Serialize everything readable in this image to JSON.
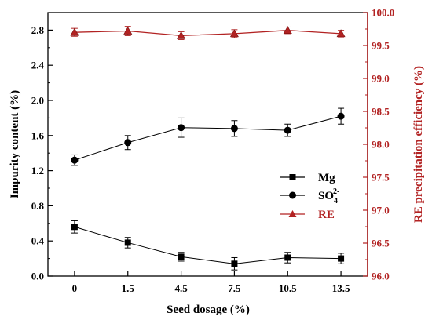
{
  "chart_data": {
    "type": "line",
    "x": [
      "0",
      "1.5",
      "4.5",
      "7.5",
      "10.5",
      "13.5"
    ],
    "xlabel": "Seed dosage (%)",
    "ylabel": "Impurity content (%)",
    "y2label": "RE precipitation efficiency (%)",
    "ylim": [
      0,
      3.0
    ],
    "y2lim": [
      96.0,
      100.0
    ],
    "yticks": [
      "0.0",
      "0.4",
      "0.8",
      "1.2",
      "1.6",
      "2.0",
      "2.4",
      "2.8"
    ],
    "y2ticks": [
      "96.0",
      "96.5",
      "97.0",
      "97.5",
      "98.0",
      "98.5",
      "99.0",
      "99.5",
      "100.0"
    ],
    "grid": false,
    "legend_position": "center-right",
    "series": [
      {
        "name": "Mg",
        "axis": "left",
        "marker": "square",
        "color": "#000000",
        "values": [
          0.56,
          0.38,
          0.22,
          0.14,
          0.21,
          0.2
        ],
        "errors": [
          0.07,
          0.06,
          0.05,
          0.07,
          0.06,
          0.06
        ]
      },
      {
        "name_main": "SO",
        "name_sub": "4",
        "name_sup": "2-",
        "axis": "left",
        "marker": "circle",
        "color": "#000000",
        "values": [
          1.32,
          1.52,
          1.69,
          1.68,
          1.66,
          1.82
        ],
        "errors": [
          0.06,
          0.08,
          0.11,
          0.09,
          0.07,
          0.09
        ]
      },
      {
        "name": "RE",
        "axis": "right",
        "marker": "triangle",
        "color": "#b22222",
        "values": [
          99.7,
          99.72,
          99.65,
          99.68,
          99.73,
          99.68
        ],
        "errors": [
          0.06,
          0.07,
          0.06,
          0.06,
          0.05,
          0.05
        ]
      }
    ]
  }
}
